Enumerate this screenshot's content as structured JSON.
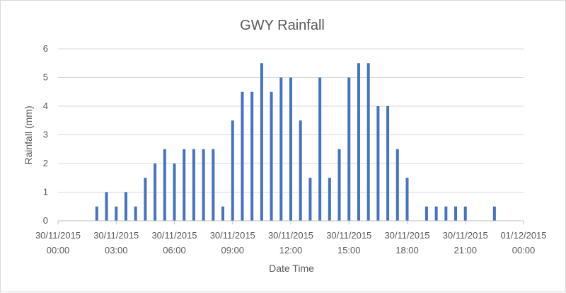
{
  "chart_data": {
    "type": "bar",
    "title": "GWY Rainfall",
    "xlabel": "Date Time",
    "ylabel": "Rainfall (mm)",
    "ylim": [
      0,
      6
    ],
    "yticks": [
      "0",
      "1",
      "2",
      "3",
      "4",
      "5",
      "6"
    ],
    "grid": true,
    "legend": "none",
    "bar_color": "#4472c4",
    "xlim": [
      "2015-11-30 00:00",
      "2015-12-01 00:00"
    ],
    "xticks": [
      {
        "date": "30/11/2015",
        "time": "00:00"
      },
      {
        "date": "30/11/2015",
        "time": "03:00"
      },
      {
        "date": "30/11/2015",
        "time": "06:00"
      },
      {
        "date": "30/11/2015",
        "time": "09:00"
      },
      {
        "date": "30/11/2015",
        "time": "12:00"
      },
      {
        "date": "30/11/2015",
        "time": "15:00"
      },
      {
        "date": "30/11/2015",
        "time": "18:00"
      },
      {
        "date": "30/11/2015",
        "time": "21:00"
      },
      {
        "date": "01/12/2015",
        "time": "00:00"
      }
    ],
    "x": [
      "02:00",
      "02:30",
      "03:00",
      "03:30",
      "04:00",
      "04:30",
      "05:00",
      "05:30",
      "06:00",
      "06:30",
      "07:00",
      "07:30",
      "08:00",
      "08:30",
      "09:00",
      "09:30",
      "10:00",
      "10:30",
      "11:00",
      "11:30",
      "12:00",
      "12:30",
      "13:00",
      "13:30",
      "14:00",
      "14:30",
      "15:00",
      "15:30",
      "16:00",
      "16:30",
      "17:00",
      "17:30",
      "18:00",
      "18:30",
      "19:00",
      "19:30",
      "20:00",
      "20:30",
      "21:00",
      "21:30",
      "22:00",
      "22:30"
    ],
    "values": [
      0.5,
      1,
      0.5,
      1,
      0.5,
      1.5,
      2,
      2.5,
      2,
      2.5,
      2.5,
      2.5,
      2.5,
      0.5,
      3.5,
      4.5,
      4.5,
      5.5,
      4.5,
      5,
      5,
      3.5,
      1.5,
      5,
      1.5,
      2.5,
      5,
      5.5,
      5.5,
      4,
      4,
      2.5,
      1.5,
      0,
      0.5,
      0.5,
      0.5,
      0.5,
      0.5,
      0,
      0,
      0.5
    ]
  }
}
